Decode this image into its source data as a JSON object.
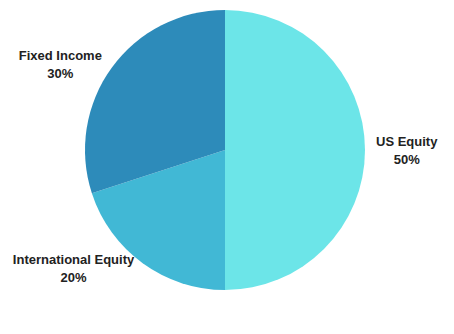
{
  "chart_data": {
    "type": "pie",
    "categories": [
      "US Equity",
      "International Equity",
      "Fixed Income"
    ],
    "values": [
      50,
      20,
      30
    ],
    "value_labels": [
      "50%",
      "20%",
      "30%"
    ],
    "colors": [
      "#6ce5e8",
      "#41b8d5",
      "#2d8bba"
    ],
    "data_labels": true
  }
}
